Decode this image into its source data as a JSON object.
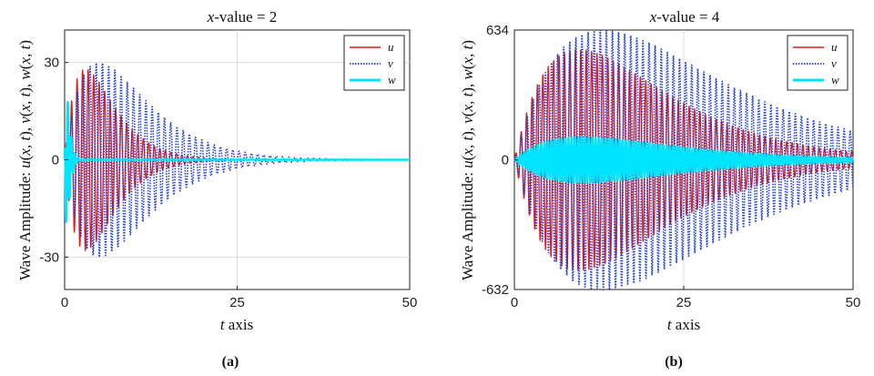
{
  "chart_data": [
    {
      "type": "line",
      "panel_label": "(a)",
      "title": "x-value = 2",
      "xlabel": "t axis",
      "ylabel": "Wave Amplitude: u(x,t), v(x,t), w(x,t)",
      "xlim": [
        0,
        50
      ],
      "ylim": [
        -40,
        40
      ],
      "xticks": [
        0,
        25,
        50
      ],
      "xtick_labels": [
        "0",
        "25",
        "50"
      ],
      "yticks": [
        -30,
        0,
        30
      ],
      "ytick_labels": [
        "-30",
        "0",
        "30"
      ],
      "grid": true,
      "legend_position": "top-right",
      "series": [
        {
          "name": "u",
          "color": "#e41a1c",
          "style": "solid",
          "peak_amplitude": 28,
          "peak_time": 3.0,
          "cycle_length": 0.8
        },
        {
          "name": "v",
          "color": "#1f3fd6",
          "style": "dotted",
          "peak_amplitude": 30,
          "peak_time": 5.0,
          "cycle_length": 0.9
        },
        {
          "name": "w",
          "color": "#00e5ff",
          "style": "solid-thick",
          "peak_amplitude": 20,
          "peak_time": 0.3,
          "cycle_length": 0.5
        }
      ]
    },
    {
      "type": "line",
      "panel_label": "(b)",
      "title": "x-value = 4",
      "xlabel": "t axis",
      "ylabel": "Wave Amplitude: u(x,t), v(x,t), w(x,t)",
      "xlim": [
        0,
        50
      ],
      "ylim": [
        -632,
        634
      ],
      "xticks": [
        0,
        25,
        50
      ],
      "xtick_labels": [
        "0",
        "25",
        "50"
      ],
      "yticks": [
        -632,
        0,
        634
      ],
      "ytick_labels": [
        "-632",
        "0",
        "634"
      ],
      "grid": true,
      "legend_position": "top-right",
      "series": [
        {
          "name": "u",
          "color": "#e41a1c",
          "style": "solid",
          "peak_amplitude": 540,
          "peak_time": 9.5,
          "cycle_length": 0.8
        },
        {
          "name": "v",
          "color": "#1f3fd6",
          "style": "dotted",
          "peak_amplitude": 634,
          "peak_time": 13.0,
          "cycle_length": 0.9
        },
        {
          "name": "w",
          "color": "#00e5ff",
          "style": "solid-thick",
          "peak_amplitude": 110,
          "peak_time": 10.0,
          "cycle_length": 0.5
        }
      ]
    }
  ]
}
